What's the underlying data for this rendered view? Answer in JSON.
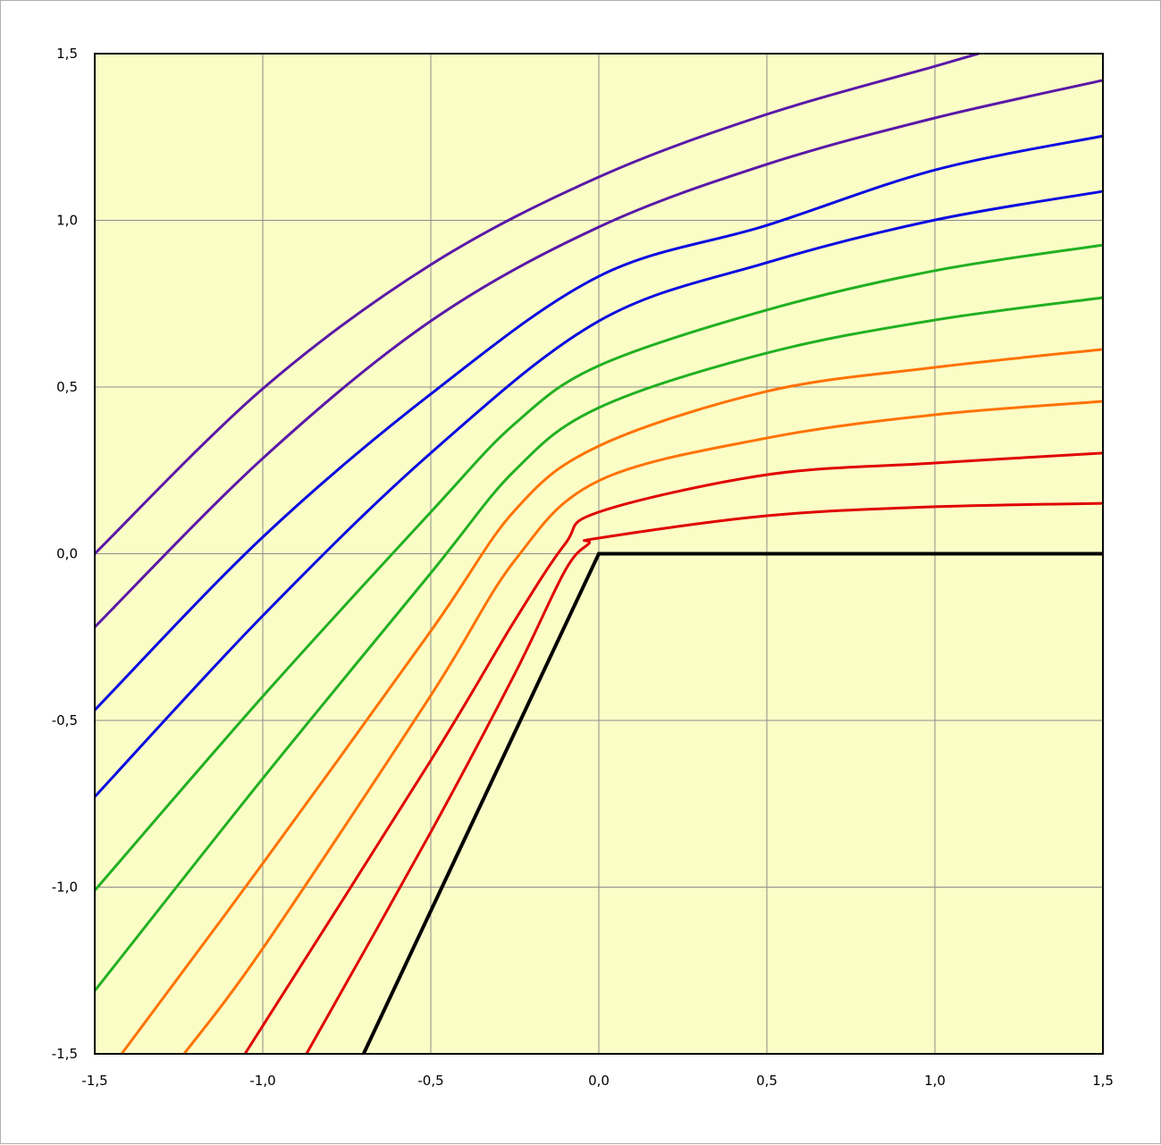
{
  "chart_data": {
    "type": "line",
    "title": "",
    "xlabel": "",
    "ylabel": "",
    "xlim": [
      -1.5,
      1.5
    ],
    "ylim": [
      -1.5,
      1.5
    ],
    "grid": true,
    "background_color": "#fbfdc6",
    "x_ticks": [
      "-1,5",
      "-1,0",
      "-0,5",
      "0,0",
      "0,5",
      "1,0",
      "1,5"
    ],
    "y_ticks": [
      "1,5",
      "1,0",
      "0,5",
      "0,0",
      "-0,5",
      "-1,0",
      "-1,5"
    ],
    "x_tick_values": [
      -1.5,
      -1.0,
      -0.5,
      0.0,
      0.5,
      1.0,
      1.5
    ],
    "y_tick_values": [
      1.5,
      1.0,
      0.5,
      0.0,
      -0.5,
      -1.0,
      -1.5
    ],
    "series": [
      {
        "color": "#000000",
        "width": 4,
        "points": [
          [
            -0.7,
            -1.5
          ],
          [
            0,
            0
          ],
          [
            1.5,
            0
          ]
        ]
      },
      {
        "color": "#5a18a8",
        "points": [
          [
            -1.5,
            0.0
          ],
          [
            -1.0,
            0.495
          ],
          [
            -0.5,
            0.867
          ],
          [
            0,
            1.13
          ],
          [
            0.5,
            1.318
          ],
          [
            1.0,
            1.462
          ],
          [
            1.13,
            1.5
          ]
        ]
      },
      {
        "color": "#5a18a8",
        "points": [
          [
            -1.5,
            -0.22
          ],
          [
            -1.0,
            0.286
          ],
          [
            -0.5,
            0.698
          ],
          [
            0,
            0.98
          ],
          [
            0.5,
            1.168
          ],
          [
            1.0,
            1.307
          ],
          [
            1.5,
            1.42
          ]
        ]
      },
      {
        "color": "#0a0ae0",
        "points": [
          [
            -1.5,
            -0.469
          ],
          [
            -1.0,
            0.05
          ],
          [
            -0.5,
            0.479
          ],
          [
            0,
            0.832
          ],
          [
            0.5,
            0.985
          ],
          [
            1.0,
            1.151
          ],
          [
            1.5,
            1.253
          ]
        ]
      },
      {
        "color": "#0a0ae0",
        "points": [
          [
            -1.5,
            -0.729
          ],
          [
            -1.0,
            -0.186
          ],
          [
            -0.5,
            0.302
          ],
          [
            0,
            0.698
          ],
          [
            0.5,
            0.873
          ],
          [
            1.0,
            1.001
          ],
          [
            1.5,
            1.087
          ]
        ]
      },
      {
        "color": "#22b022",
        "points": [
          [
            -1.5,
            -1.01
          ],
          [
            -1.0,
            -0.428
          ],
          [
            -0.5,
            0.125
          ],
          [
            -0.25,
            0.39
          ],
          [
            0,
            0.564
          ],
          [
            0.5,
            0.731
          ],
          [
            1.0,
            0.849
          ],
          [
            1.5,
            0.926
          ]
        ]
      },
      {
        "color": "#22b022",
        "points": [
          [
            -1.5,
            -1.311
          ],
          [
            -1.0,
            -0.674
          ],
          [
            -0.5,
            -0.058
          ],
          [
            -0.25,
            0.25
          ],
          [
            0,
            0.438
          ],
          [
            0.5,
            0.602
          ],
          [
            1.0,
            0.701
          ],
          [
            1.5,
            0.768
          ]
        ]
      },
      {
        "color": "#ff7200",
        "points": [
          [
            -1.42,
            -1.5
          ],
          [
            -1.0,
            -0.929
          ],
          [
            -0.5,
            -0.232
          ],
          [
            -0.25,
            0.13
          ],
          [
            0,
            0.323
          ],
          [
            0.5,
            0.487
          ],
          [
            1.0,
            0.559
          ],
          [
            1.5,
            0.613
          ]
        ]
      },
      {
        "color": "#ff7200",
        "points": [
          [
            -1.234,
            -1.5
          ],
          [
            -1.0,
            -1.184
          ],
          [
            -0.5,
            -0.425
          ],
          [
            -0.25,
            -0.02
          ],
          [
            0,
            0.219
          ],
          [
            0.5,
            0.347
          ],
          [
            1.0,
            0.417
          ],
          [
            1.5,
            0.457
          ]
        ]
      },
      {
        "color": "#e00000",
        "points": [
          [
            -1.053,
            -1.5
          ],
          [
            -0.5,
            -0.62
          ],
          [
            -0.25,
            -0.2
          ],
          [
            -0.1,
            0.03
          ],
          [
            0,
            0.125
          ],
          [
            0.5,
            0.237
          ],
          [
            1.0,
            0.272
          ],
          [
            1.5,
            0.302
          ]
        ]
      },
      {
        "color": "#e00000",
        "points": [
          [
            -0.87,
            -1.5
          ],
          [
            -0.5,
            -0.835
          ],
          [
            -0.25,
            -0.36
          ],
          [
            -0.1,
            -0.05
          ],
          [
            -0.03,
            0.03
          ],
          [
            0,
            0.047
          ],
          [
            0.5,
            0.114
          ],
          [
            1.0,
            0.141
          ],
          [
            1.5,
            0.151
          ]
        ]
      }
    ]
  }
}
